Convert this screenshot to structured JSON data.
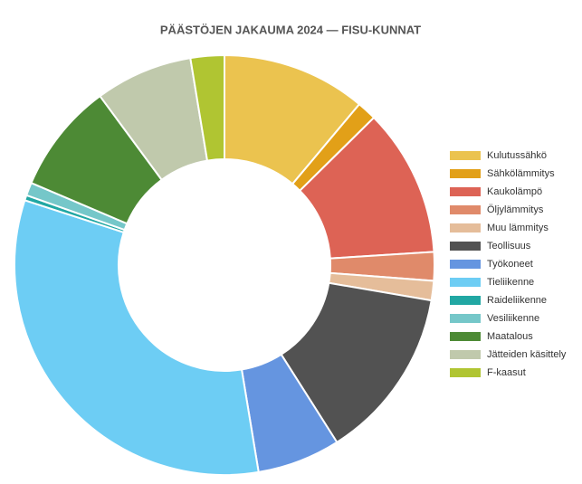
{
  "chart_data": {
    "type": "donut",
    "title": "PÄÄSTÖJEN JAKAUMA 2024 — FISU-KUNNAT",
    "categories": [
      "Kulutussähkö",
      "Sähkölämmitys",
      "Kaukolämpö",
      "Öljylämmitys",
      "Muu lämmitys",
      "Teollisuus",
      "Työkoneet",
      "Tieliikenne",
      "Raideliikenne",
      "Vesiliikenne",
      "Maatalous",
      "Jätteiden käsittely",
      "F-kaasut"
    ],
    "values": [
      11.1,
      1.5,
      11.4,
      2.2,
      1.5,
      13.3,
      6.4,
      32.6,
      0.4,
      1.0,
      8.5,
      7.5,
      2.6
    ],
    "colors": [
      "#ebc34f",
      "#e2a018",
      "#dd6355",
      "#e08a6a",
      "#e5bd9a",
      "#525252",
      "#6595e0",
      "#6dcdf4",
      "#21a7a3",
      "#75c7c9",
      "#4d8a35",
      "#c0c9ac",
      "#b0c532"
    ],
    "legend": "right"
  }
}
